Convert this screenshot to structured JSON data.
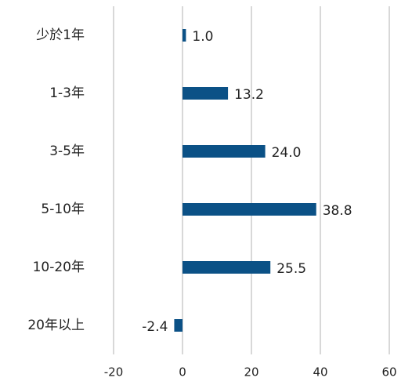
{
  "chart_data": {
    "type": "hbar",
    "categories": [
      "少於1年",
      "1-3年",
      "3-5年",
      "5-10年",
      "10-20年",
      "20年以上"
    ],
    "values": [
      1.0,
      13.2,
      24.0,
      38.8,
      25.5,
      -2.4
    ],
    "value_labels": [
      "1.0",
      "13.2",
      "24.0",
      "38.8",
      "25.5",
      "-2.4"
    ],
    "color": "#0b5186",
    "xlim": [
      -20,
      60
    ],
    "xticks": [
      -20,
      0,
      20,
      40,
      60
    ],
    "grid": true
  }
}
